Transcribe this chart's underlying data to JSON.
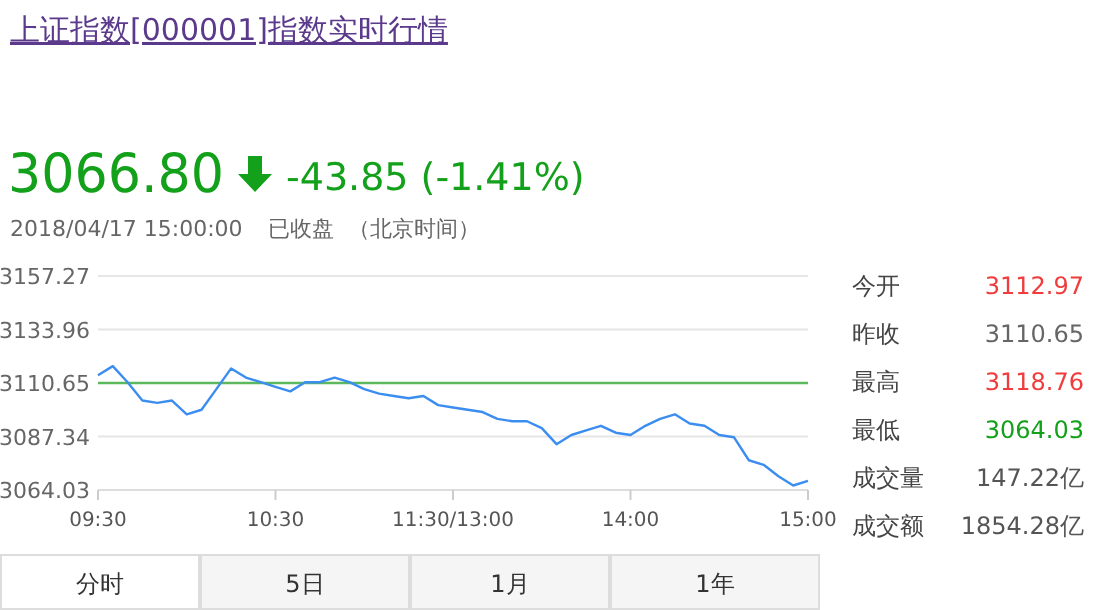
{
  "chart_data": {
    "type": "line",
    "title": "上证指数[000001]指数实时行情",
    "categories": [
      "09:30",
      null,
      null,
      null,
      null,
      null,
      null,
      null,
      null,
      null,
      null,
      null,
      "10:30",
      null,
      null,
      null,
      null,
      null,
      null,
      null,
      null,
      null,
      null,
      null,
      "11:30/13:00",
      null,
      null,
      null,
      null,
      null,
      null,
      null,
      null,
      null,
      null,
      null,
      "14:00",
      null,
      null,
      null,
      null,
      null,
      null,
      null,
      null,
      null,
      null,
      null,
      "15:00"
    ],
    "series": [
      {
        "color": "#3b8df0",
        "values": [
          3114,
          3118,
          3111,
          3103,
          3102,
          3103,
          3097,
          3099,
          3108,
          3117,
          3113,
          3111,
          3109,
          3107,
          3111,
          3111,
          3113,
          3111,
          3108,
          3106,
          3105,
          3104,
          3105,
          3101,
          3100,
          3099,
          3098,
          3095,
          3094,
          3094,
          3091,
          3084,
          3088,
          3090,
          3092,
          3089,
          3088,
          3092,
          3095,
          3097,
          3093,
          3092,
          3088,
          3087,
          3077,
          3075,
          3070,
          3066,
          3068
        ]
      }
    ],
    "ylim": [
      3064.03,
      3157.27
    ],
    "yticks": [
      3064.03,
      3087.34,
      3110.65,
      3133.96,
      3157.27
    ],
    "grid": "y",
    "ref_lines": [
      {
        "axis": "y",
        "value": 3110.65,
        "color": "#5cb85c"
      }
    ],
    "annotations": [
      "3066.80",
      "-43.85 (-1.41%)",
      "2018/04/17 15:00:00",
      "已收盘",
      "（北京时间）",
      "今开",
      "3112.97",
      "昨收",
      "3110.65",
      "最高",
      "3118.76",
      "最低",
      "3064.03",
      "成交量",
      "147.22亿",
      "成交额",
      "1854.28亿",
      "分时",
      "5日",
      "1月",
      "1年"
    ]
  }
}
